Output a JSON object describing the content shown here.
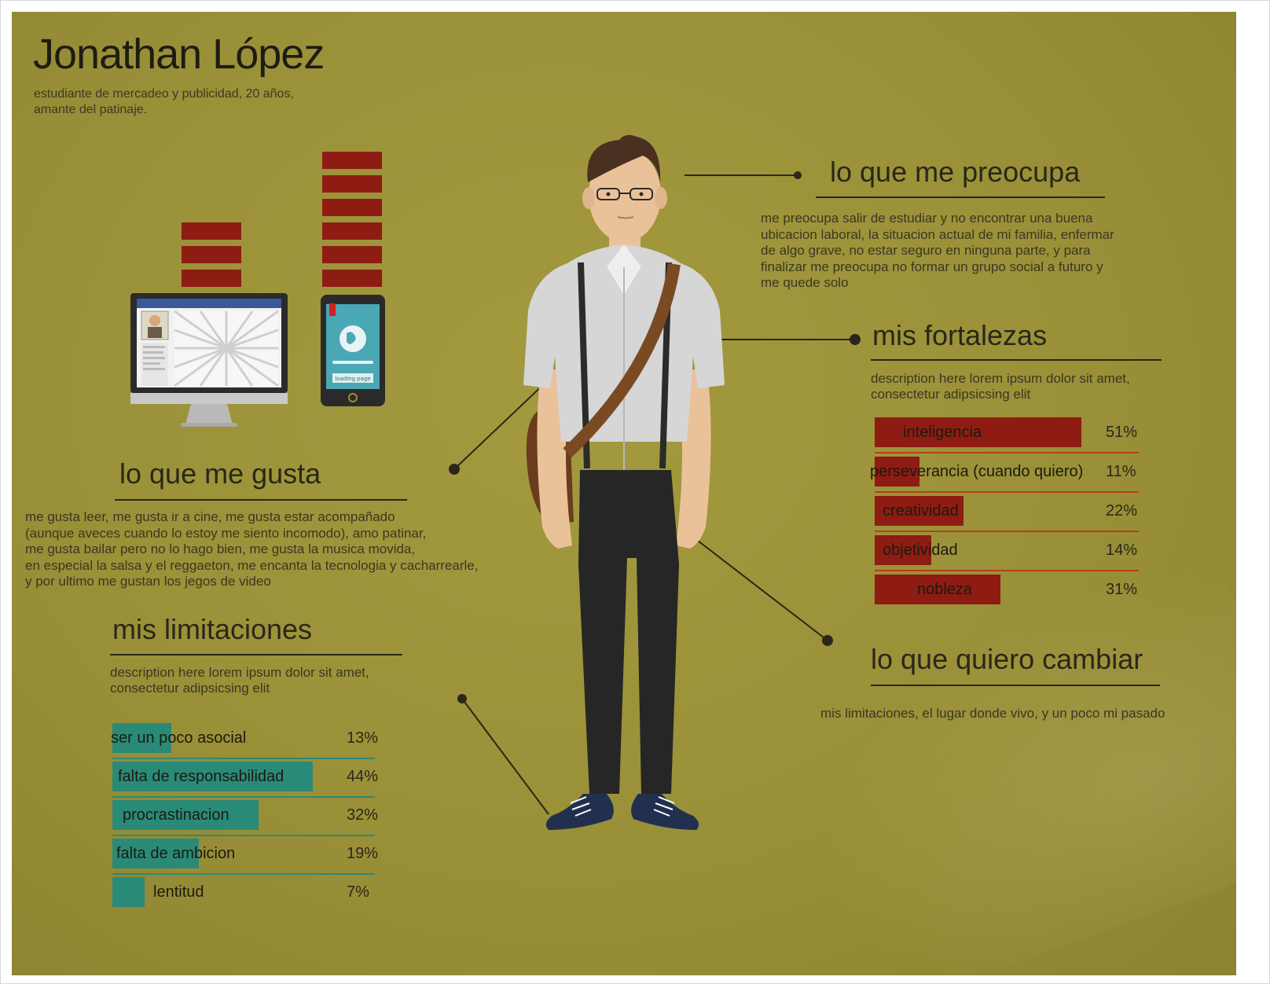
{
  "header": {
    "name": "Jonathan López",
    "subtitle_line1": "estudiante de mercadeo y publicidad, 20 años,",
    "subtitle_line2": "amante del patinaje."
  },
  "colors": {
    "background": "#9a9038",
    "strength_bar": "#8e1c12",
    "limitation_bar": "#2a8a78",
    "strength_line": "#b5401a",
    "limitation_line": "#2a8a78",
    "text_dark": "#2a2718"
  },
  "device_stacks": {
    "computer_blocks": 3,
    "phone_blocks": 6
  },
  "phone_screen_label": "loading page",
  "sections": {
    "worries": {
      "heading": "lo que me preocupa",
      "lines": [
        "me preocupa salir de estudiar y no encontrar una buena",
        "ubicacion laboral, la situacion actual de mi familia, enfermar",
        "de algo grave, no estar seguro en ninguna parte, y para",
        "finalizar me preocupa no formar un grupo social a futuro y",
        "me quede solo"
      ]
    },
    "strengths": {
      "heading": "mis fortalezas",
      "desc_line1": "description here lorem ipsum dolor sit amet,",
      "desc_line2": "consectetur adipsicsing elit",
      "items": [
        {
          "label": "inteligencia",
          "percent_label": "51%",
          "fill": 0.51
        },
        {
          "label": "perseverancia (cuando quiero)",
          "percent_label": "11%",
          "fill": 0.11
        },
        {
          "label": "creatividad",
          "percent_label": "22%",
          "fill": 0.22
        },
        {
          "label": "objetividad",
          "percent_label": "14%",
          "fill": 0.14
        },
        {
          "label": "nobleza",
          "percent_label": "31%",
          "fill": 0.31
        }
      ]
    },
    "likes": {
      "heading": "lo que me gusta",
      "lines": [
        "me gusta leer, me gusta ir a cine, me gusta estar acompañado",
        "(aunque aveces cuando lo estoy me siento incomodo), amo patinar,",
        "me gusta bailar pero no lo hago bien, me gusta la musica movida,",
        "en especial la salsa y el reggaeton, me encanta la tecnologia y cacharrearle,",
        "y por ultimo me gustan los jegos de video"
      ]
    },
    "limitations": {
      "heading": "mis limitaciones",
      "desc_line1": "description here lorem ipsum dolor sit amet,",
      "desc_line2": "consectetur adipsicsing elit",
      "items": [
        {
          "label": "ser un poco asocial",
          "percent_label": "13%",
          "fill": 0.13
        },
        {
          "label": "falta de responsabilidad",
          "percent_label": "44%",
          "fill": 0.44
        },
        {
          "label": "procrastinacion",
          "percent_label": "32%",
          "fill": 0.32
        },
        {
          "label": "falta de ambicion",
          "percent_label": "19%",
          "fill": 0.19
        },
        {
          "label": "lentitud",
          "percent_label": "7%",
          "fill": 0.07
        }
      ]
    },
    "change": {
      "heading": "lo que quiero cambiar",
      "text": "mis limitaciones, el lugar donde vivo, y un poco mi pasado"
    }
  }
}
